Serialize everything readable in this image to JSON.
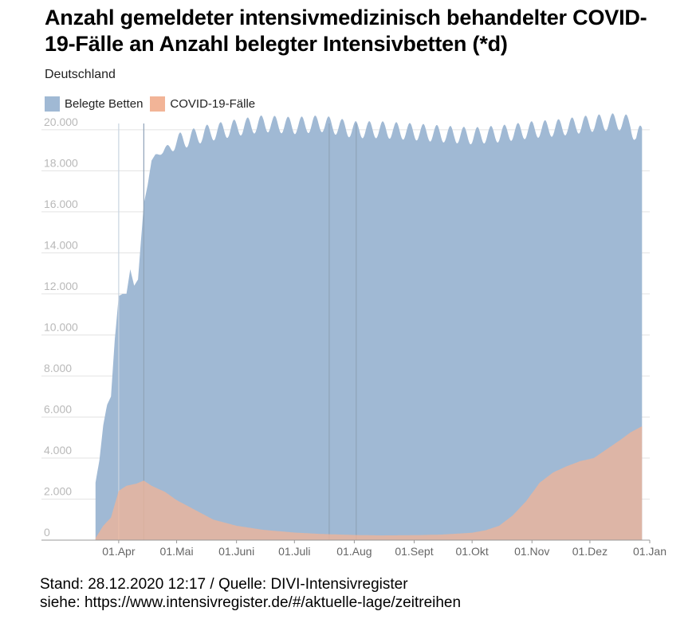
{
  "chart_data": {
    "type": "area",
    "title": "Anzahl gemeldeter intensivmedizinisch behandelter COVID-19-Fälle an Anzahl belegter Intensivbetten (*d)",
    "subtitle": "Deutschland",
    "legend_position": "top-left",
    "ylim": [
      0,
      20500
    ],
    "yticks": [
      0,
      2000,
      4000,
      6000,
      8000,
      10000,
      12000,
      14000,
      16000,
      18000,
      20000
    ],
    "ytick_labels": [
      "0",
      "2.000",
      "4.000",
      "6.000",
      "8.000",
      "10.000",
      "12.000",
      "14.000",
      "16.000",
      "18.000",
      "20.000"
    ],
    "xlim": [
      "2020-02-21",
      "2021-01-01"
    ],
    "xticks": [
      "2020-04-01",
      "2020-05-01",
      "2020-06-01",
      "2020-07-01",
      "2020-08-01",
      "2020-09-01",
      "2020-10-01",
      "2020-11-01",
      "2020-12-01",
      "2021-01-01"
    ],
    "xtick_labels": [
      "01.Apr",
      "01.Mai",
      "01.Juni",
      "01.Juli",
      "01.Aug",
      "01.Sept",
      "01.Okt",
      "01.Nov",
      "01.Dez",
      "01.Jan"
    ],
    "grid": true,
    "series": [
      {
        "name": "Belegte Betten",
        "color": "#a0b9d4",
        "points": [
          [
            "2020-03-20",
            2800
          ],
          [
            "2020-03-22",
            3900
          ],
          [
            "2020-03-24",
            5600
          ],
          [
            "2020-03-26",
            6600
          ],
          [
            "2020-03-28",
            7000
          ],
          [
            "2020-03-30",
            9800
          ],
          [
            "2020-04-01",
            11900
          ],
          [
            "2020-04-03",
            12000
          ],
          [
            "2020-04-05",
            12000
          ],
          [
            "2020-04-07",
            13200
          ],
          [
            "2020-04-09",
            12400
          ],
          [
            "2020-04-11",
            12700
          ],
          [
            "2020-04-14",
            16400
          ],
          [
            "2020-04-16",
            17300
          ],
          [
            "2020-04-18",
            18500
          ],
          [
            "2020-04-20",
            18800
          ],
          [
            "2020-04-24",
            18900
          ],
          [
            "2020-05-01",
            19400
          ],
          [
            "2020-05-15",
            19800
          ],
          [
            "2020-06-01",
            20100
          ],
          [
            "2020-06-15",
            20300
          ],
          [
            "2020-07-01",
            20200
          ],
          [
            "2020-07-15",
            20300
          ],
          [
            "2020-08-01",
            20000
          ],
          [
            "2020-08-15",
            20000
          ],
          [
            "2020-09-01",
            19900
          ],
          [
            "2020-09-15",
            19800
          ],
          [
            "2020-10-01",
            19700
          ],
          [
            "2020-10-15",
            19800
          ],
          [
            "2020-11-01",
            20000
          ],
          [
            "2020-11-15",
            20100
          ],
          [
            "2020-12-01",
            20300
          ],
          [
            "2020-12-15",
            20400
          ],
          [
            "2020-12-22",
            20300
          ],
          [
            "2020-12-25",
            19600
          ],
          [
            "2020-12-28",
            19900
          ]
        ]
      },
      {
        "name": "COVID-19-Fälle",
        "color": "#f2b497",
        "points": [
          [
            "2020-03-20",
            100
          ],
          [
            "2020-03-24",
            700
          ],
          [
            "2020-03-28",
            1100
          ],
          [
            "2020-04-01",
            2400
          ],
          [
            "2020-04-05",
            2650
          ],
          [
            "2020-04-10",
            2750
          ],
          [
            "2020-04-14",
            2900
          ],
          [
            "2020-04-18",
            2650
          ],
          [
            "2020-04-25",
            2350
          ],
          [
            "2020-05-01",
            1950
          ],
          [
            "2020-05-10",
            1500
          ],
          [
            "2020-05-20",
            1000
          ],
          [
            "2020-06-01",
            700
          ],
          [
            "2020-06-15",
            500
          ],
          [
            "2020-07-01",
            370
          ],
          [
            "2020-07-15",
            300
          ],
          [
            "2020-08-01",
            250
          ],
          [
            "2020-08-15",
            230
          ],
          [
            "2020-09-01",
            240
          ],
          [
            "2020-09-15",
            270
          ],
          [
            "2020-10-01",
            360
          ],
          [
            "2020-10-08",
            480
          ],
          [
            "2020-10-15",
            700
          ],
          [
            "2020-10-22",
            1200
          ],
          [
            "2020-10-29",
            1900
          ],
          [
            "2020-11-05",
            2800
          ],
          [
            "2020-11-12",
            3300
          ],
          [
            "2020-11-19",
            3600
          ],
          [
            "2020-11-26",
            3850
          ],
          [
            "2020-12-03",
            4000
          ],
          [
            "2020-12-10",
            4450
          ],
          [
            "2020-12-17",
            4900
          ],
          [
            "2020-12-22",
            5250
          ],
          [
            "2020-12-25",
            5400
          ],
          [
            "2020-12-28",
            5550
          ]
        ]
      }
    ]
  },
  "footer": {
    "line1": "Stand: 28.12.2020 12:17 / Quelle: DIVI-Intensivregister",
    "line2": "siehe: https://www.intensivregister.de/#/aktuelle-lage/zeitreihen"
  }
}
